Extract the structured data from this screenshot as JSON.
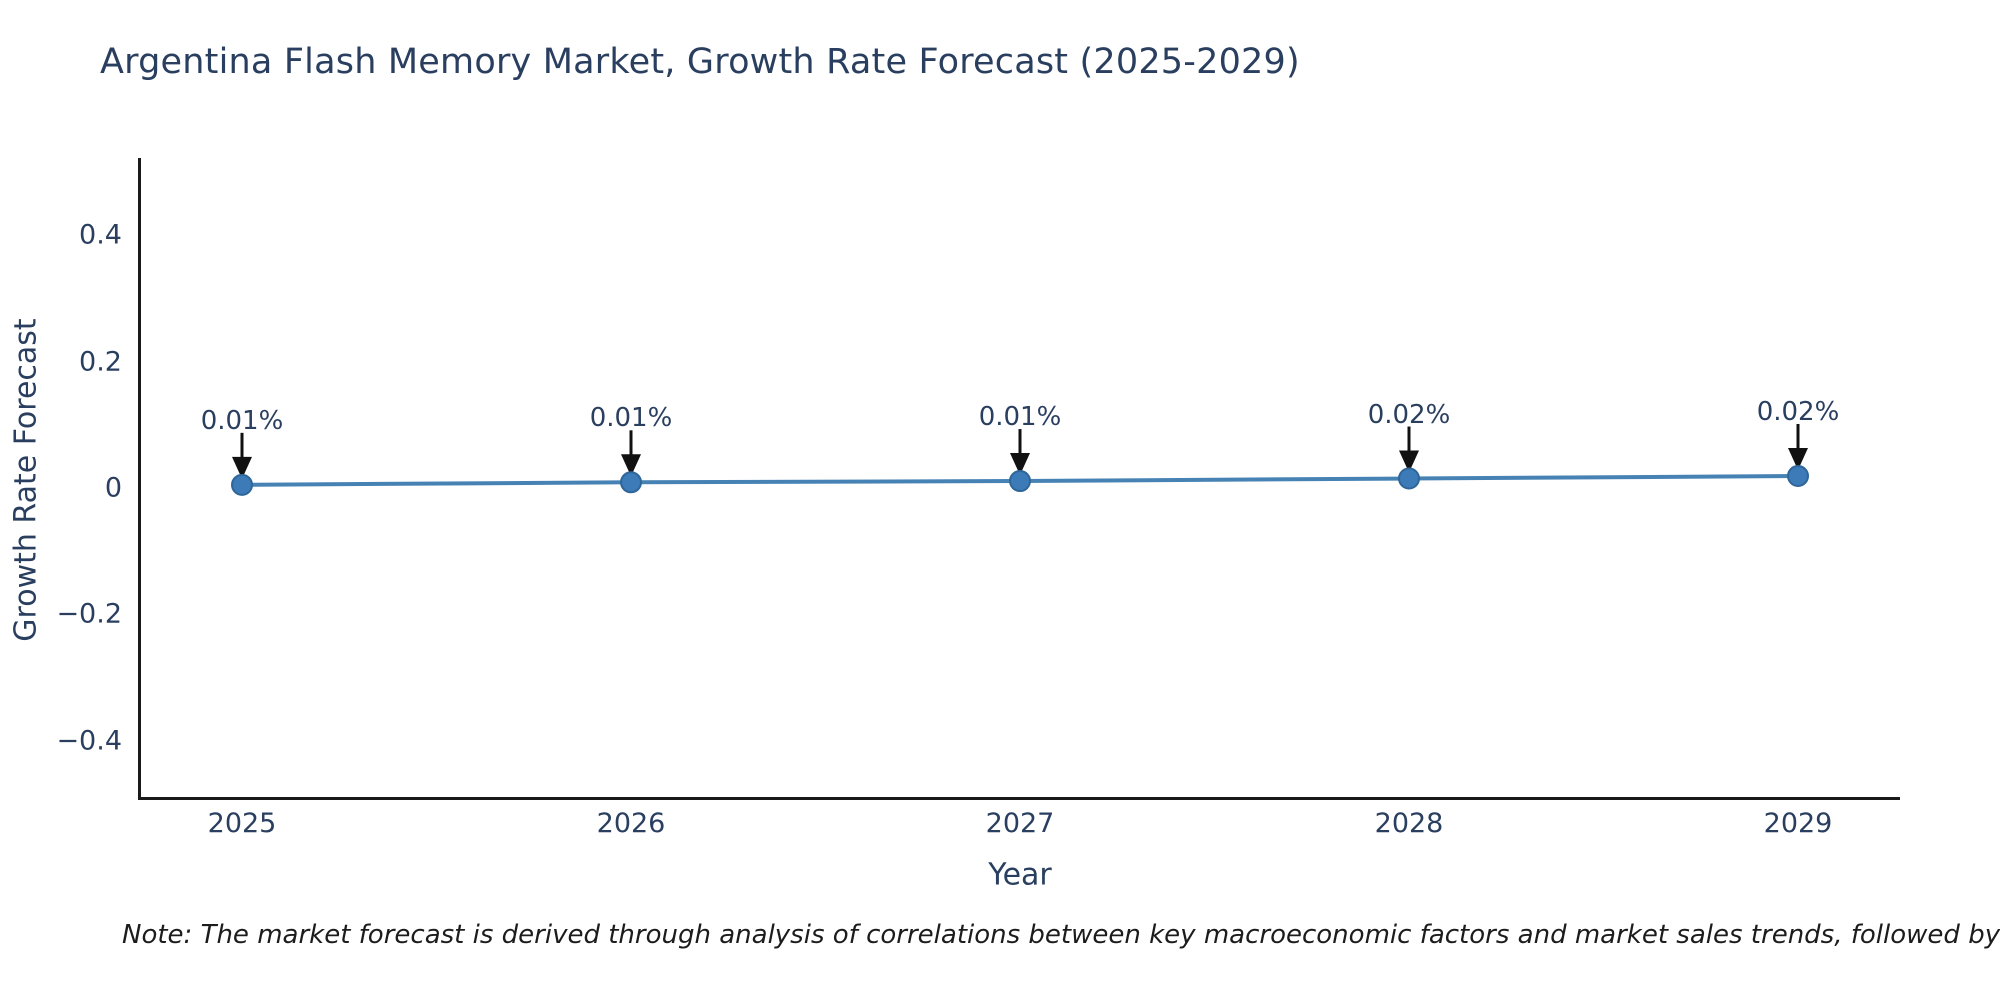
{
  "chart_data": {
    "type": "line",
    "title": "Argentina Flash Memory Market, Growth Rate Forecast (2025-2029)",
    "xlabel": "Year",
    "ylabel": "Growth Rate Forecast",
    "categories": [
      "2025",
      "2026",
      "2027",
      "2028",
      "2029"
    ],
    "series": [
      {
        "name": "Growth Rate Forecast",
        "values": [
          0.01,
          0.01,
          0.01,
          0.02,
          0.02
        ],
        "unit": "%"
      }
    ],
    "point_labels": [
      "0.01%",
      "0.01%",
      "0.01%",
      "0.02%",
      "0.02%"
    ],
    "plotted_values_est": [
      0.005,
      0.009,
      0.011,
      0.015,
      0.019
    ],
    "y_ticks": [
      {
        "label": "0.4",
        "value": 0.4
      },
      {
        "label": "0.2",
        "value": 0.2
      },
      {
        "label": "0",
        "value": 0
      },
      {
        "label": "−0.2",
        "value": -0.2
      },
      {
        "label": "−0.4",
        "value": -0.4
      }
    ],
    "ylim": [
      -0.49,
      0.52
    ],
    "grid": false,
    "legend": "none",
    "annotation_arrows": true,
    "colors": {
      "line": "#4682b4",
      "marker": "#3d7ab8",
      "marker_edge": "#2f6699",
      "arrow": "#111111",
      "axis": "#1a1a1a",
      "text": "#2a3f5f"
    }
  },
  "footnote": {
    "text": "Note: The market forecast is derived through analysis of correlations between key macroeconomic factors and market sales trends, followed by predictive modeling to project future sales."
  }
}
